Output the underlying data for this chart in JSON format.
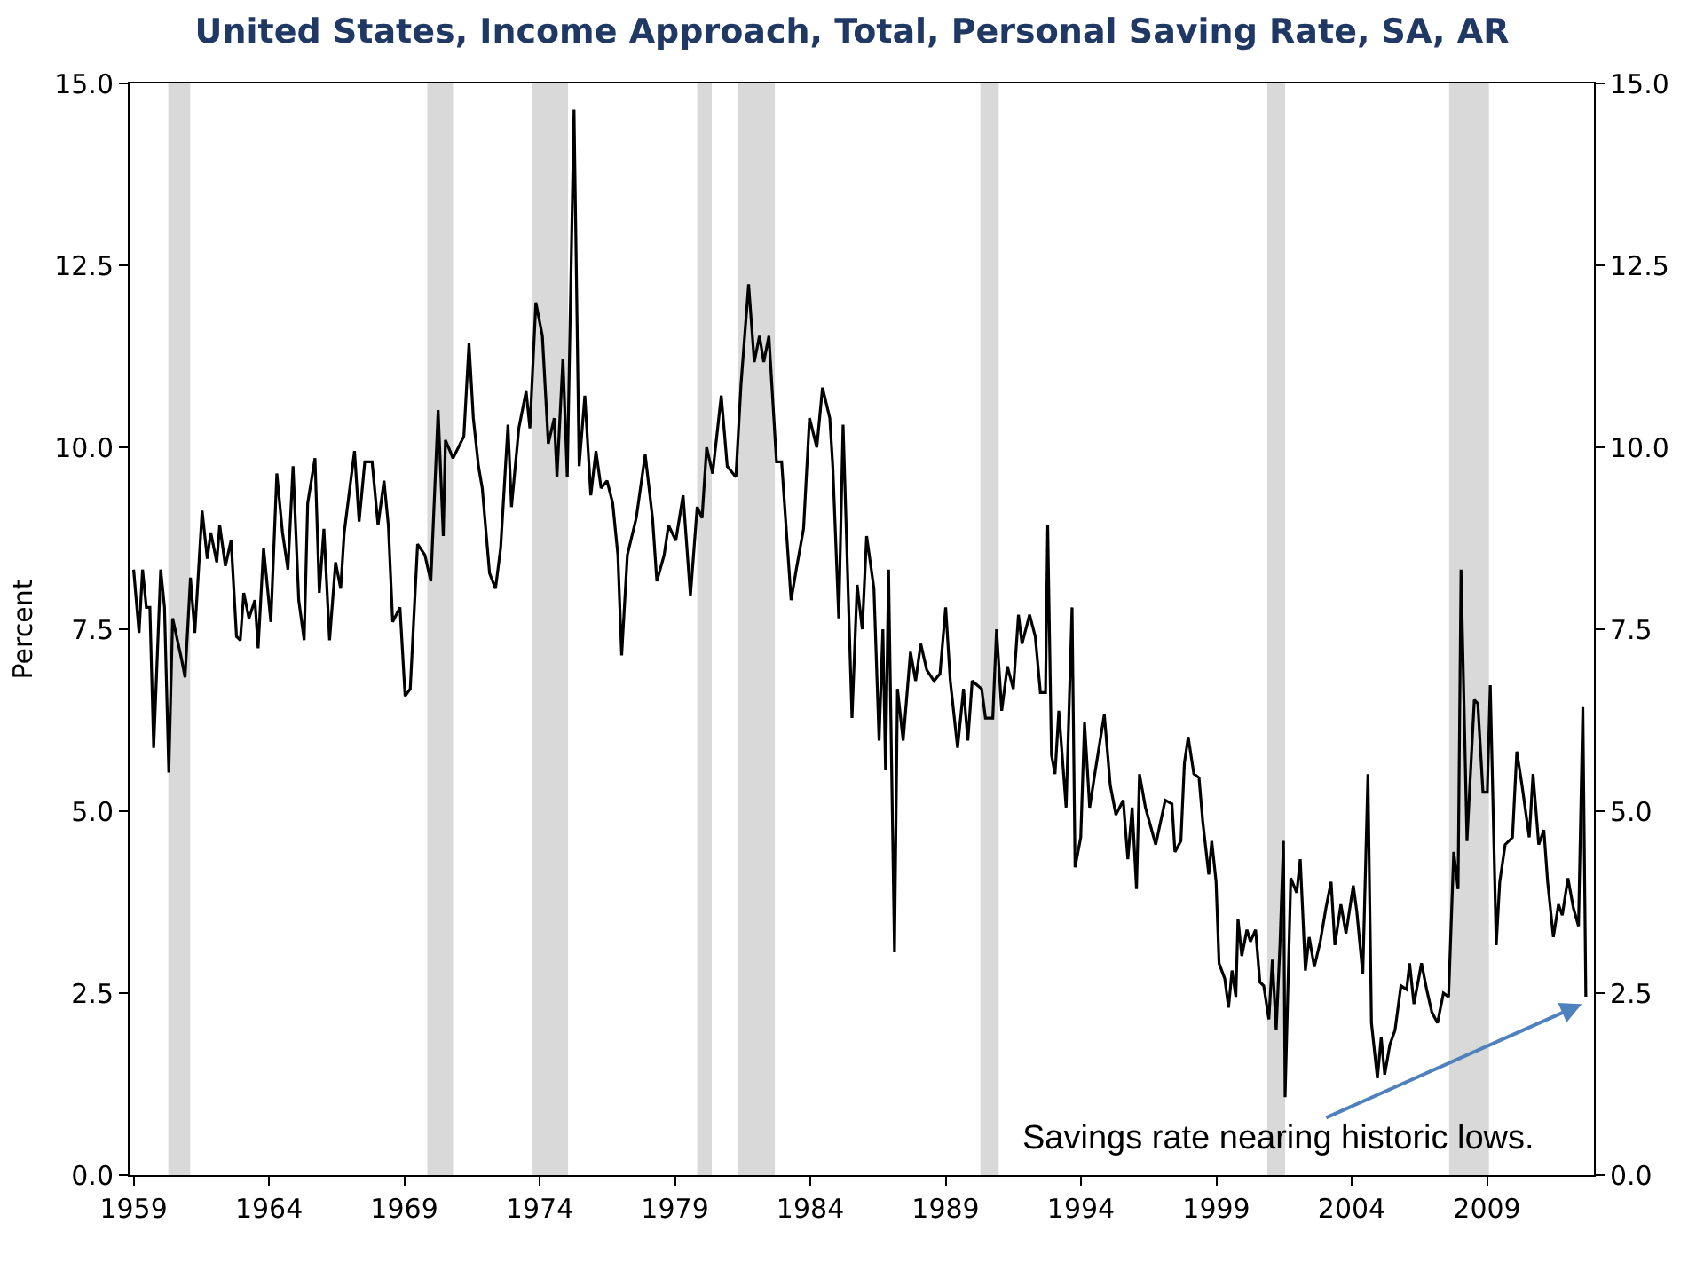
{
  "chart_data": {
    "type": "line",
    "title": "United States, Income Approach, Total, Personal Saving Rate, SA, AR",
    "ylabel": "Percent",
    "xlim": [
      1958.85,
      2012.95
    ],
    "xticks": [
      1959,
      1964,
      1969,
      1974,
      1979,
      1984,
      1989,
      1994,
      1999,
      2004,
      2009
    ],
    "ylim": [
      0,
      15
    ],
    "yticks": [
      {
        "value": 0,
        "label": "0.0"
      },
      2.5,
      {
        "value": 5,
        "label": "5.0"
      },
      7.5,
      {
        "value": 10,
        "label": "10.0"
      },
      12.5,
      {
        "value": 15,
        "label": "15.0"
      }
    ],
    "y2lim": [
      0,
      15
    ],
    "y2ticks": [
      {
        "value": 0,
        "label": "0.0"
      },
      2.5,
      {
        "value": 5,
        "label": "5.0"
      },
      7.5,
      {
        "value": 10,
        "label": "10.0"
      },
      12.5,
      {
        "value": 15,
        "label": "15.0"
      }
    ],
    "marker": "none",
    "line_style": "solid",
    "series": [
      {
        "color": "#000000",
        "x": [
          1959.0,
          1959.2,
          1959.33,
          1959.47,
          1959.6,
          1959.74,
          1960.0,
          1960.14,
          1960.3,
          1960.44,
          1960.77,
          1960.9,
          1961.1,
          1961.26,
          1961.53,
          1961.72,
          1961.85,
          1962.07,
          1962.18,
          1962.39,
          1962.6,
          1962.8,
          1962.94,
          1963.07,
          1963.26,
          1963.48,
          1963.6,
          1963.8,
          1964.07,
          1964.29,
          1964.5,
          1964.7,
          1964.89,
          1965.1,
          1965.3,
          1965.43,
          1965.7,
          1965.86,
          1966.03,
          1966.24,
          1966.46,
          1966.65,
          1966.78,
          1967.16,
          1967.33,
          1967.54,
          1967.81,
          1968.03,
          1968.25,
          1968.41,
          1968.57,
          1968.84,
          1969.03,
          1969.22,
          1969.49,
          1969.76,
          1969.98,
          1970.25,
          1970.44,
          1970.52,
          1970.8,
          1971.0,
          1971.2,
          1971.39,
          1971.55,
          1971.74,
          1971.88,
          1972.15,
          1972.37,
          1972.56,
          1972.83,
          1972.96,
          1973.23,
          1973.5,
          1973.64,
          1973.86,
          1974.1,
          1974.32,
          1974.54,
          1974.64,
          1974.86,
          1975.02,
          1975.27,
          1975.46,
          1975.67,
          1975.89,
          1976.08,
          1976.27,
          1976.49,
          1976.7,
          1976.89,
          1977.03,
          1977.24,
          1977.57,
          1977.9,
          1978.17,
          1978.33,
          1978.6,
          1978.76,
          1979.03,
          1979.3,
          1979.57,
          1979.82,
          1980.0,
          1980.17,
          1980.39,
          1980.71,
          1980.93,
          1981.25,
          1981.44,
          1981.72,
          1981.93,
          1982.12,
          1982.28,
          1982.47,
          1982.75,
          1982.94,
          1983.29,
          1983.48,
          1983.75,
          1983.97,
          1984.24,
          1984.45,
          1984.72,
          1984.83,
          1985.05,
          1985.21,
          1985.54,
          1985.73,
          1985.92,
          1986.08,
          1986.35,
          1986.54,
          1986.68,
          1986.78,
          1986.89,
          1987.11,
          1987.22,
          1987.43,
          1987.7,
          1987.89,
          1988.08,
          1988.3,
          1988.57,
          1988.79,
          1989.0,
          1989.17,
          1989.44,
          1989.66,
          1989.82,
          1989.98,
          1990.33,
          1990.47,
          1990.74,
          1990.88,
          1991.07,
          1991.28,
          1991.5,
          1991.69,
          1991.82,
          1992.1,
          1992.31,
          1992.5,
          1992.69,
          1992.77,
          1992.91,
          1993.04,
          1993.18,
          1993.45,
          1993.67,
          1993.78,
          1993.99,
          1994.13,
          1994.32,
          1994.53,
          1994.86,
          1995.08,
          1995.29,
          1995.56,
          1995.73,
          1995.89,
          1996.05,
          1996.16,
          1996.38,
          1996.76,
          1997.11,
          1997.36,
          1997.47,
          1997.69,
          1997.82,
          1997.96,
          1998.17,
          1998.36,
          1998.5,
          1998.72,
          1998.83,
          1998.99,
          1999.1,
          1999.31,
          1999.45,
          1999.58,
          1999.72,
          1999.8,
          1999.94,
          2000.13,
          2000.26,
          2000.45,
          2000.61,
          2000.75,
          2000.94,
          2001.07,
          2001.21,
          2001.35,
          2001.48,
          2001.54,
          2001.75,
          2001.97,
          2002.1,
          2002.29,
          2002.43,
          2002.62,
          2002.84,
          2003.05,
          2003.24,
          2003.38,
          2003.6,
          2003.79,
          2004.06,
          2004.19,
          2004.41,
          2004.6,
          2004.73,
          2004.95,
          2005.09,
          2005.22,
          2005.41,
          2005.6,
          2005.82,
          2006.03,
          2006.14,
          2006.3,
          2006.58,
          2006.77,
          2006.96,
          2007.17,
          2007.39,
          2007.58,
          2007.77,
          2007.93,
          2008.04,
          2008.26,
          2008.53,
          2008.66,
          2008.85,
          2009.01,
          2009.12,
          2009.34,
          2009.47,
          2009.67,
          2009.94,
          2010.1,
          2010.29,
          2010.56,
          2010.7,
          2010.91,
          2011.1,
          2011.24,
          2011.45,
          2011.64,
          2011.78,
          2011.99,
          2012.19,
          2012.38,
          2012.54,
          2012.65
        ],
        "values": [
          8.32,
          7.45,
          8.32,
          7.8,
          7.8,
          5.87,
          8.32,
          7.8,
          5.53,
          7.65,
          7.09,
          6.84,
          8.21,
          7.45,
          9.13,
          8.47,
          8.83,
          8.42,
          8.93,
          8.37,
          8.72,
          7.4,
          7.35,
          8.0,
          7.65,
          7.9,
          7.24,
          8.62,
          7.6,
          9.64,
          8.83,
          8.32,
          9.74,
          7.9,
          7.35,
          9.23,
          9.85,
          8.0,
          8.88,
          7.35,
          8.42,
          8.06,
          8.83,
          9.95,
          8.98,
          9.8,
          9.8,
          8.93,
          9.54,
          8.93,
          7.6,
          7.8,
          6.58,
          6.68,
          8.67,
          8.52,
          8.16,
          10.51,
          8.78,
          10.1,
          9.85,
          10.0,
          10.15,
          11.43,
          10.4,
          9.74,
          9.44,
          8.27,
          8.06,
          8.62,
          10.31,
          9.18,
          10.26,
          10.77,
          10.26,
          11.99,
          11.53,
          10.05,
          10.4,
          9.59,
          11.22,
          9.59,
          14.64,
          9.74,
          10.71,
          9.34,
          9.95,
          9.44,
          9.54,
          9.23,
          8.52,
          7.14,
          8.52,
          9.03,
          9.9,
          9.03,
          8.16,
          8.52,
          8.93,
          8.72,
          9.34,
          7.96,
          9.18,
          9.03,
          10.0,
          9.64,
          10.71,
          9.74,
          9.59,
          10.87,
          12.24,
          11.17,
          11.53,
          11.17,
          11.53,
          9.8,
          9.8,
          7.9,
          8.32,
          8.88,
          10.4,
          10.0,
          10.82,
          10.4,
          9.74,
          7.65,
          10.31,
          6.28,
          8.11,
          7.5,
          8.78,
          8.06,
          5.97,
          7.5,
          5.56,
          8.32,
          3.06,
          6.68,
          5.97,
          7.19,
          6.79,
          7.3,
          6.94,
          6.79,
          6.89,
          7.8,
          6.79,
          5.87,
          6.68,
          5.97,
          6.79,
          6.68,
          6.28,
          6.28,
          7.5,
          6.38,
          6.99,
          6.68,
          7.7,
          7.3,
          7.7,
          7.4,
          6.63,
          6.63,
          8.93,
          5.77,
          5.51,
          6.38,
          5.05,
          7.8,
          4.23,
          4.64,
          6.22,
          5.05,
          5.56,
          6.33,
          5.36,
          4.95,
          5.15,
          4.34,
          5.05,
          3.93,
          5.51,
          5.05,
          4.54,
          5.15,
          5.1,
          4.44,
          4.59,
          5.66,
          6.02,
          5.51,
          5.46,
          4.85,
          4.13,
          4.59,
          4.03,
          2.91,
          2.7,
          2.3,
          2.81,
          2.45,
          3.52,
          3.01,
          3.37,
          3.21,
          3.37,
          2.65,
          2.6,
          2.14,
          2.96,
          1.99,
          3.16,
          4.59,
          1.07,
          4.08,
          3.88,
          4.34,
          2.81,
          3.27,
          2.86,
          3.21,
          3.67,
          4.03,
          3.16,
          3.72,
          3.32,
          3.98,
          3.62,
          2.76,
          5.51,
          2.09,
          1.33,
          1.89,
          1.38,
          1.79,
          1.99,
          2.6,
          2.55,
          2.91,
          2.35,
          2.91,
          2.55,
          2.24,
          2.09,
          2.5,
          2.45,
          4.44,
          3.93,
          8.32,
          4.59,
          6.53,
          6.48,
          5.26,
          5.26,
          6.73,
          3.16,
          4.03,
          4.54,
          4.64,
          5.82,
          5.36,
          4.64,
          5.51,
          4.54,
          4.74,
          4.03,
          3.27,
          3.72,
          3.57,
          4.08,
          3.67,
          3.42,
          6.43,
          2.45
        ]
      }
    ],
    "bands": [
      {
        "axis": "x",
        "from": 1960.28,
        "to": 1961.09,
        "color": "#d9d9d9"
      },
      {
        "axis": "x",
        "from": 1969.85,
        "to": 1970.8,
        "color": "#d9d9d9"
      },
      {
        "axis": "x",
        "from": 1973.72,
        "to": 1975.05,
        "color": "#d9d9d9"
      },
      {
        "axis": "x",
        "from": 1979.82,
        "to": 1980.36,
        "color": "#d9d9d9"
      },
      {
        "axis": "x",
        "from": 1981.34,
        "to": 1982.69,
        "color": "#d9d9d9"
      },
      {
        "axis": "x",
        "from": 1990.28,
        "to": 1990.96,
        "color": "#d9d9d9"
      },
      {
        "axis": "x",
        "from": 2000.88,
        "to": 2001.54,
        "color": "#d9d9d9"
      },
      {
        "axis": "x",
        "from": 2007.6,
        "to": 2009.07,
        "color": "#d9d9d9"
      }
    ],
    "annotations": [
      {
        "text": "Savings rate nearing historic lows.",
        "x": 2012.5,
        "y": 2.35
      }
    ]
  }
}
